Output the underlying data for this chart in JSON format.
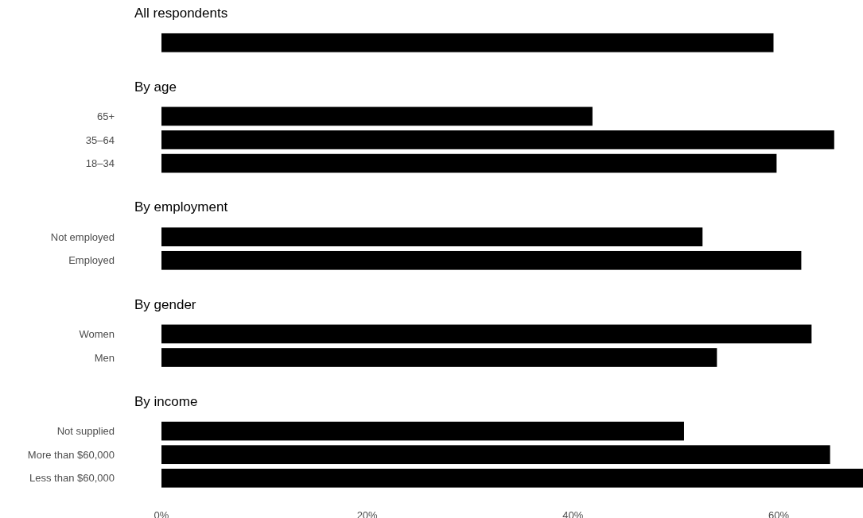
{
  "chart_data": [
    {
      "type": "bar",
      "orientation": "horizontal",
      "title": "All respondents",
      "categories": [
        null
      ],
      "values": [
        59.5
      ],
      "color": "#000000",
      "xlim": [
        0,
        68.2
      ],
      "tick_labels": false
    },
    {
      "type": "bar",
      "orientation": "horizontal",
      "title": "By age",
      "categories": [
        "65+",
        "35–64",
        "18–34"
      ],
      "values": [
        41.9,
        65.4,
        59.8
      ],
      "color": "#000000",
      "xlim": [
        0,
        68.2
      ],
      "tick_labels": "y"
    },
    {
      "type": "bar",
      "orientation": "horizontal",
      "title": "By employment",
      "categories": [
        "Not employed",
        "Employed"
      ],
      "values": [
        52.6,
        62.2
      ],
      "color": "#000000",
      "xlim": [
        0,
        68.2
      ],
      "tick_labels": "y"
    },
    {
      "type": "bar",
      "orientation": "horizontal",
      "title": "By gender",
      "categories": [
        "Women",
        "Men"
      ],
      "values": [
        63.2,
        54.0
      ],
      "color": "#000000",
      "xlim": [
        0,
        68.2
      ],
      "tick_labels": "y"
    },
    {
      "type": "bar",
      "orientation": "horizontal",
      "title": "By income",
      "categories": [
        "Not supplied",
        "More than $60,000",
        "Less than $60,000"
      ],
      "values": [
        50.8,
        65.0,
        68.2
      ],
      "color": "#000000",
      "xlim": [
        0,
        68.2
      ],
      "xticks": [
        {
          "value": 0,
          "label": "0%"
        },
        {
          "value": 20,
          "label": "20%"
        },
        {
          "value": 40,
          "label": "40%"
        },
        {
          "value": 60,
          "label": "60%"
        }
      ]
    }
  ]
}
